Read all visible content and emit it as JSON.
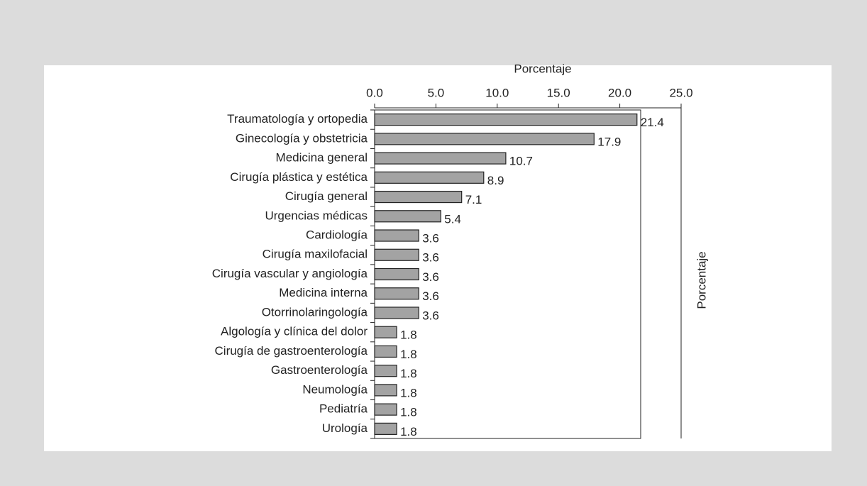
{
  "chart_data": {
    "type": "hbar",
    "x_label": "Porcentaje",
    "secondary_axis_label": "Porcentaje",
    "categories": [
      "Traumatología y ortopedia",
      "Ginecología y obstetricia",
      "Medicina general",
      "Cirugía plástica y estética",
      "Cirugía general",
      "Urgencias médicas",
      "Cardiología",
      "Cirugía maxilofacial",
      "Cirugía vascular y angiología",
      "Medicina interna",
      "Otorrinolaringología",
      "Algología y clínica del dolor",
      "Cirugía de gastroenterología",
      "Gastroenterología",
      "Neumología",
      "Pediatría",
      "Urología"
    ],
    "values": [
      21.4,
      17.9,
      10.7,
      8.9,
      7.1,
      5.4,
      3.6,
      3.6,
      3.6,
      3.6,
      3.6,
      1.8,
      1.8,
      1.8,
      1.8,
      1.8,
      1.8
    ],
    "color": "#a3a3a3",
    "xlim": [
      0,
      25
    ],
    "xticks": [
      {
        "value": 0,
        "label": "0.0"
      },
      {
        "value": 5,
        "label": "5.0"
      },
      {
        "value": 10,
        "label": "10.0"
      },
      {
        "value": 15,
        "label": "15.0"
      },
      {
        "value": 20,
        "label": "20.0"
      },
      {
        "value": 25,
        "label": "25.0"
      }
    ]
  }
}
